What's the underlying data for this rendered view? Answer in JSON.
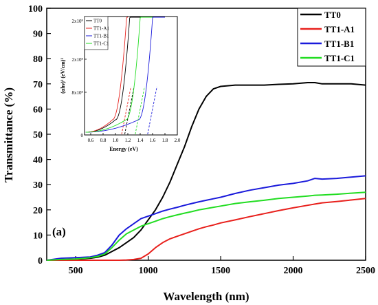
{
  "chart_data": {
    "type": "line",
    "xlabel": "Wavelength (nm)",
    "ylabel": "Transmittance (%)",
    "xlim": [
      300,
      2500
    ],
    "ylim": [
      0,
      100
    ],
    "xticks": [
      500,
      1000,
      1500,
      2000,
      2500
    ],
    "yticks": [
      0,
      10,
      20,
      30,
      40,
      50,
      60,
      70,
      80,
      90,
      100
    ],
    "panel_label": "(a)",
    "legend_position": "top-right",
    "x": [
      300,
      400,
      500,
      600,
      650,
      700,
      750,
      800,
      850,
      900,
      950,
      1000,
      1050,
      1100,
      1150,
      1200,
      1250,
      1300,
      1350,
      1400,
      1450,
      1500,
      1600,
      1700,
      1800,
      1900,
      2000,
      2100,
      2150,
      2200,
      2300,
      2400,
      2500
    ],
    "series": [
      {
        "name": "TT0",
        "color": "#000000",
        "values": [
          0,
          0.2,
          0.4,
          0.8,
          1.2,
          2,
          3.5,
          5,
          7,
          9,
          12,
          16,
          20,
          25,
          31,
          38,
          45,
          53,
          60,
          65,
          68,
          69,
          69.5,
          69.5,
          69.5,
          69.8,
          70,
          70.5,
          70.5,
          70,
          70,
          70,
          69.5
        ]
      },
      {
        "name": "TT1-A1",
        "color": "#e8201c",
        "values": [
          0,
          0,
          0,
          0,
          0,
          0,
          0,
          0,
          0.1,
          0.3,
          0.8,
          2.5,
          5,
          7,
          8.5,
          9.5,
          10.5,
          11.5,
          12.5,
          13.3,
          14,
          14.8,
          16,
          17.3,
          18.5,
          19.7,
          20.8,
          21.8,
          22.3,
          22.8,
          23.3,
          23.9,
          24.5
        ]
      },
      {
        "name": "TT1-B1",
        "color": "#1a1adb",
        "values": [
          0,
          0.8,
          1,
          1.3,
          2,
          3,
          6,
          10,
          12.5,
          14.5,
          16.5,
          17.5,
          18.5,
          19.5,
          20.3,
          21,
          21.8,
          22.5,
          23.2,
          23.8,
          24.4,
          25,
          26.5,
          27.8,
          28.8,
          29.8,
          30.5,
          31.5,
          32.5,
          32.2,
          32.5,
          33,
          33.5
        ]
      },
      {
        "name": "TT1-C1",
        "color": "#22dd22",
        "values": [
          0,
          0.3,
          0.5,
          1,
          1.5,
          2.5,
          5,
          8,
          10.5,
          12,
          13.5,
          14.5,
          15.5,
          16.5,
          17.3,
          18,
          18.7,
          19.3,
          20,
          20.5,
          21,
          21.5,
          22.5,
          23.2,
          23.8,
          24.5,
          25,
          25.5,
          25.8,
          25.9,
          26.2,
          26.6,
          27
        ]
      }
    ],
    "inset": {
      "xlabel": "Energy (eV)",
      "ylabel": "(αhν)² (eV/cm)²",
      "xlim": [
        0.5,
        2.0
      ],
      "xticks": [
        "0.6",
        "0.8",
        "1.0",
        "1.2",
        "1.4",
        "1.6",
        "1.8",
        "2.0"
      ],
      "yticks": [
        "0",
        "8x10⁹",
        "2x10⁹",
        "2x10⁹"
      ],
      "legend_position": "top-left",
      "series": [
        {
          "name": "TT0",
          "color": "#000000",
          "onset": 1.15,
          "end_x": 1.8
        },
        {
          "name": "TT1-A1",
          "color": "#e8201c",
          "onset": 1.1,
          "end_x": 1.2
        },
        {
          "name": "TT1-B1",
          "color": "#1a1adb",
          "onset": 1.52,
          "end_x": 1.8
        },
        {
          "name": "TT1-C1",
          "color": "#22dd22",
          "onset": 1.32,
          "end_x": 1.6
        }
      ]
    }
  }
}
